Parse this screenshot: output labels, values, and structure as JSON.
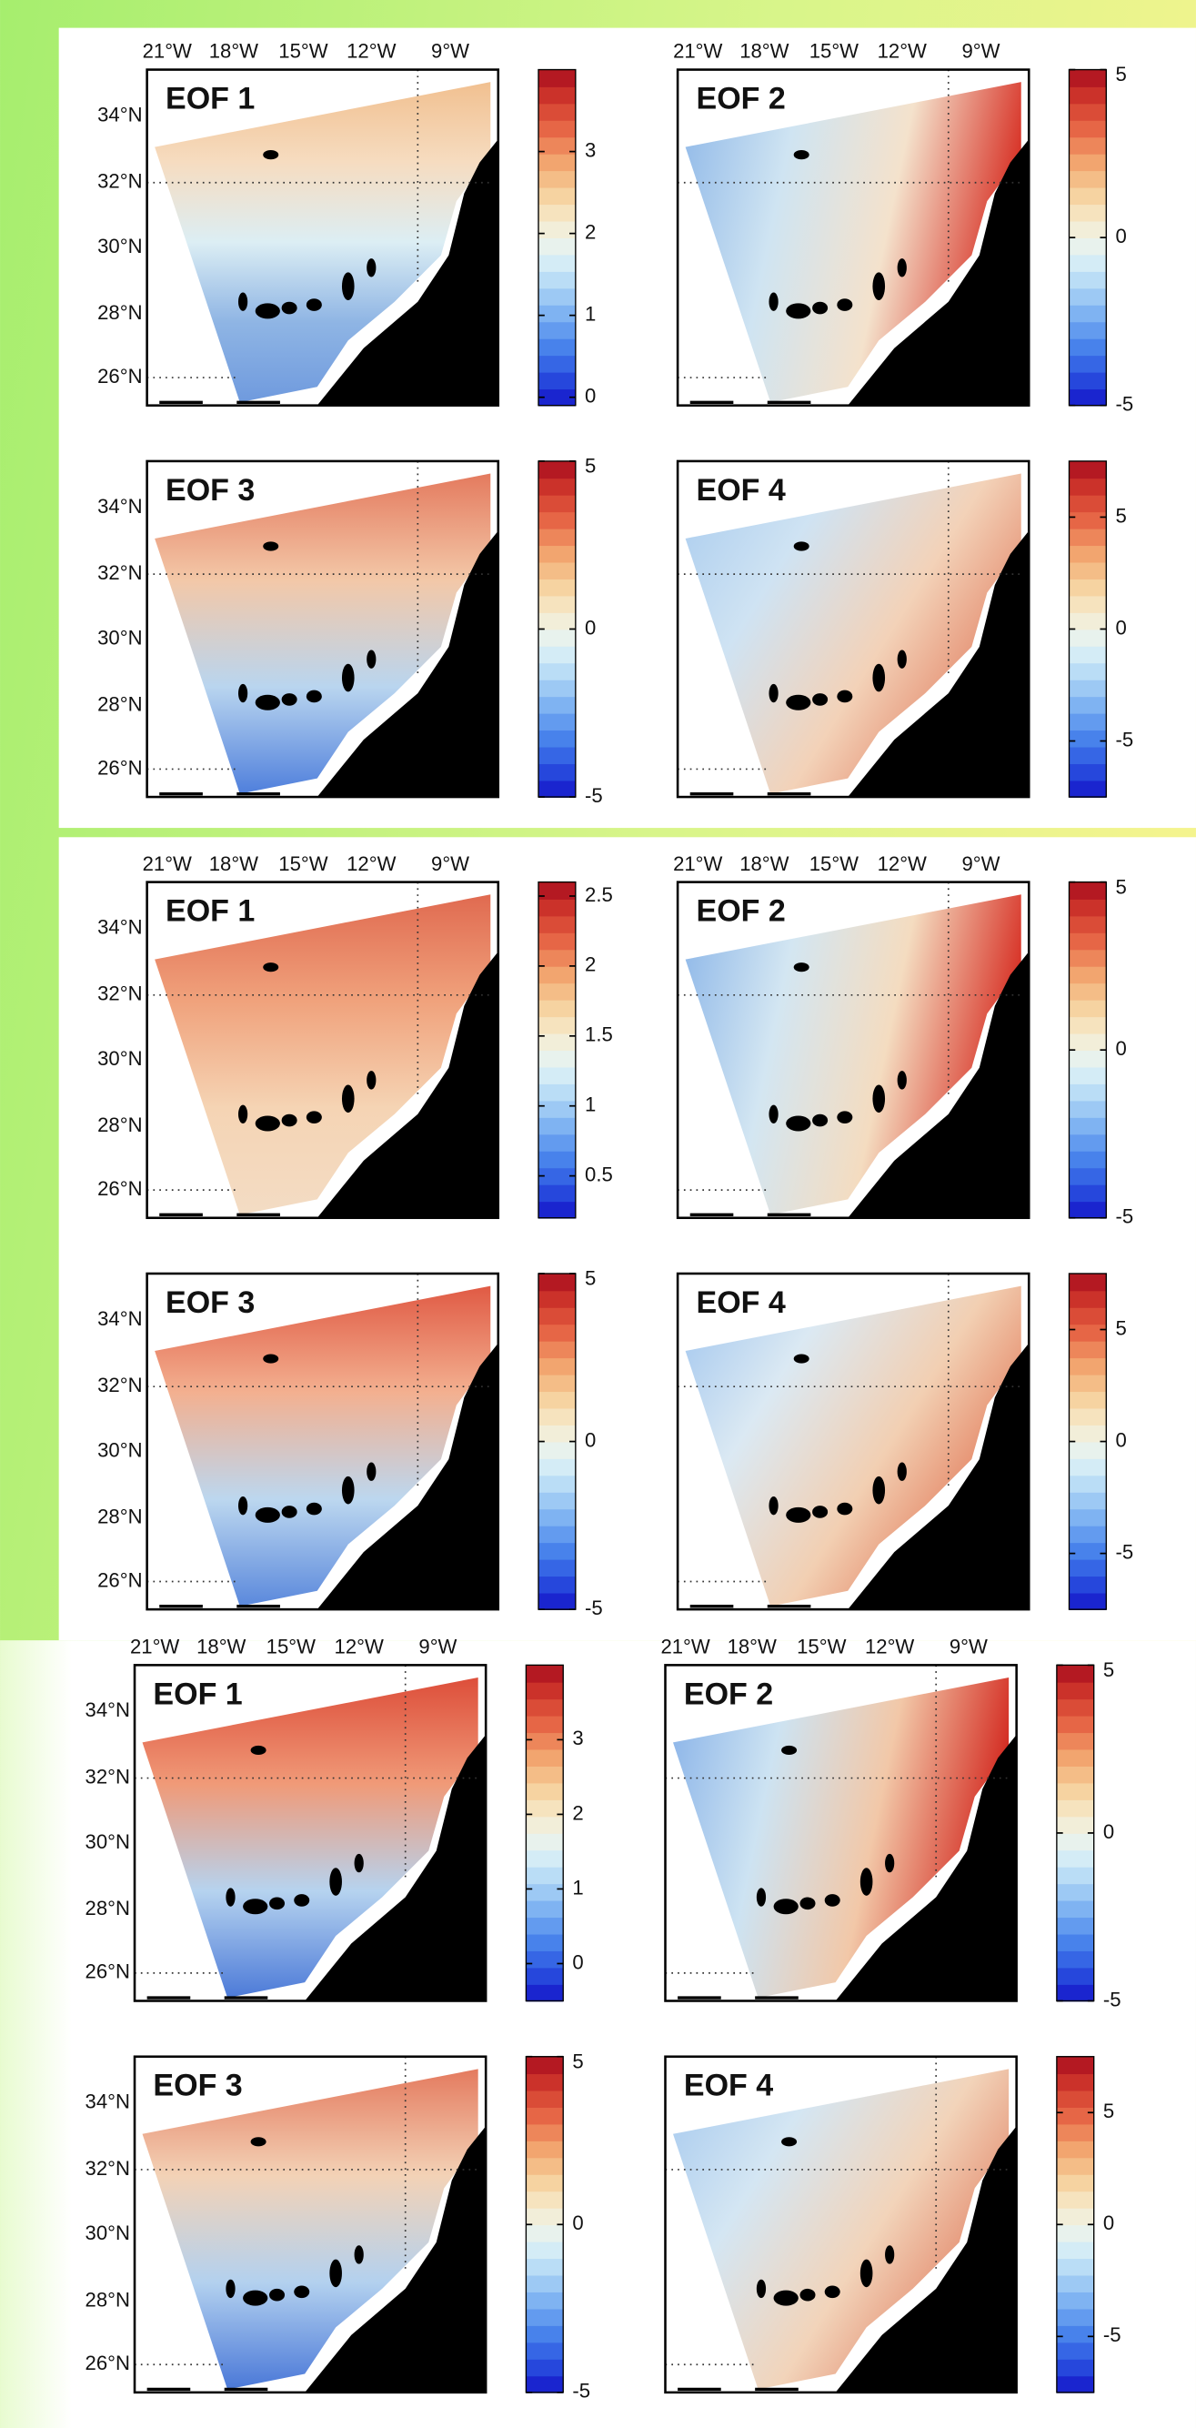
{
  "lon_labels": [
    "21°W",
    "18°W",
    "15°W",
    "12°W",
    "9°W"
  ],
  "lat_labels": [
    "34°N",
    "32°N",
    "30°N",
    "28°N",
    "26°N"
  ],
  "panels": [
    {
      "maps": [
        {
          "title": "EOF 1",
          "colorbar": {
            "lim": [
              -0.1,
              4.0
            ],
            "ticks": [
              0,
              1,
              2,
              3
            ]
          }
        },
        {
          "title": "EOF 2",
          "colorbar": {
            "lim": [
              -5,
              5
            ],
            "ticks": [
              5,
              0,
              -5
            ]
          }
        },
        {
          "title": "EOF 3",
          "colorbar": {
            "lim": [
              -5,
              5
            ],
            "ticks": [
              5,
              0,
              -5
            ]
          }
        },
        {
          "title": "EOF 4",
          "colorbar": {
            "lim": [
              -7.5,
              7.5
            ],
            "ticks": [
              5,
              0,
              -5
            ]
          }
        }
      ]
    },
    {
      "maps": [
        {
          "title": "EOF 1",
          "colorbar": {
            "lim": [
              0.2,
              2.6
            ],
            "ticks": [
              0.5,
              1,
              1.5,
              2,
              2.5
            ]
          }
        },
        {
          "title": "EOF 2",
          "colorbar": {
            "lim": [
              -5,
              5
            ],
            "ticks": [
              5,
              0,
              -5
            ]
          }
        },
        {
          "title": "EOF 3",
          "colorbar": {
            "lim": [
              -5,
              5
            ],
            "ticks": [
              5,
              0,
              -5
            ]
          }
        },
        {
          "title": "EOF 4",
          "colorbar": {
            "lim": [
              -7.5,
              7.5
            ],
            "ticks": [
              5,
              0,
              -5
            ]
          }
        }
      ]
    },
    {
      "maps": [
        {
          "title": "EOF 1",
          "colorbar": {
            "lim": [
              -0.5,
              4.0
            ],
            "ticks": [
              0,
              1,
              2,
              3
            ]
          }
        },
        {
          "title": "EOF 2",
          "colorbar": {
            "lim": [
              -5,
              5
            ],
            "ticks": [
              5,
              0,
              -5
            ]
          }
        },
        {
          "title": "EOF 3",
          "colorbar": {
            "lim": [
              -5,
              5
            ],
            "ticks": [
              5,
              0,
              -5
            ]
          }
        },
        {
          "title": "EOF 4",
          "colorbar": {
            "lim": [
              -7.5,
              7.5
            ],
            "ticks": [
              5,
              0,
              -5
            ]
          }
        }
      ]
    }
  ]
}
